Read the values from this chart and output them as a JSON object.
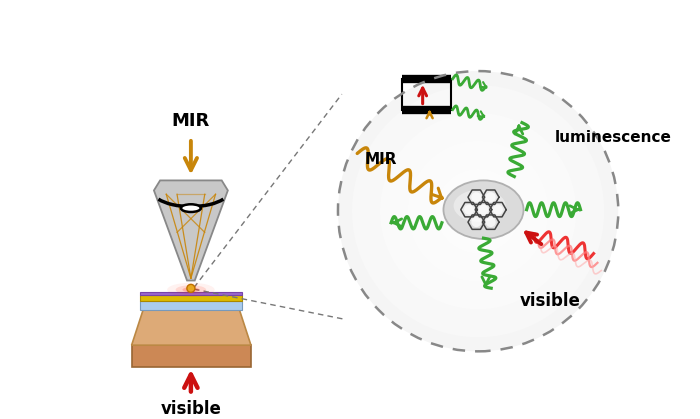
{
  "bg_color": "#ffffff",
  "mir_color": "#c8860a",
  "green_color": "#3aaa35",
  "red_color": "#cc1111",
  "mir_label": "MIR",
  "visible_label": "visible",
  "luminescence_label": "luminescence",
  "mir_inner_label": "MIR"
}
